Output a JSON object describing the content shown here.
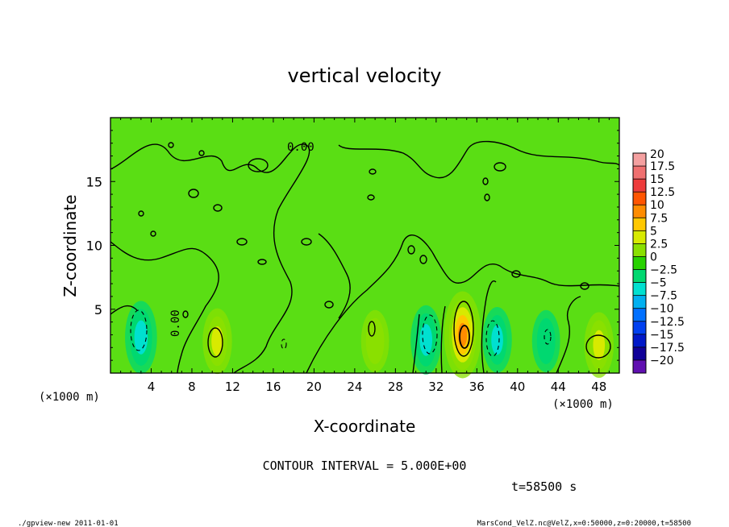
{
  "chart_data": {
    "type": "heatmap",
    "title": "vertical velocity",
    "xlabel": "X-coordinate",
    "ylabel": "Z-coordinate",
    "x_unit": "(×1000 m)",
    "y_unit": "(×1000 m)",
    "xlim": [
      0,
      50
    ],
    "ylim": [
      0,
      20
    ],
    "x_ticks": [
      "4",
      "8",
      "12",
      "16",
      "20",
      "24",
      "28",
      "32",
      "36",
      "40",
      "44",
      "48"
    ],
    "x_tick_values": [
      4,
      8,
      12,
      16,
      20,
      24,
      28,
      32,
      36,
      40,
      44,
      48
    ],
    "y_ticks": [
      "5",
      "10",
      "15"
    ],
    "y_tick_values": [
      5,
      10,
      15
    ],
    "colorbar": {
      "labels": [
        "20",
        "17.5",
        "15",
        "12.5",
        "10",
        "7.5",
        "5",
        "2.5",
        "0",
        "−2.5",
        "−5",
        "−7.5",
        "−10",
        "−12.5",
        "−15",
        "−17.5",
        "−20"
      ],
      "colors": [
        "#f4a0a0",
        "#f07070",
        "#ee3c3c",
        "#ff5500",
        "#ff8c00",
        "#ffc800",
        "#d8ea00",
        "#8ae000",
        "#28d200",
        "#00d870",
        "#00e0d0",
        "#00b0f0",
        "#0070ff",
        "#0040f0",
        "#0018c8",
        "#100098",
        "#6010b0"
      ]
    },
    "contour_labels": [
      "0.00",
      "0.00"
    ],
    "contour_interval_text": "CONTOUR INTERVAL = 5.000E+00",
    "time_text": "t=58500 s",
    "features": [
      {
        "x": 3,
        "z": 2.8,
        "w": -6
      },
      {
        "x": 10.5,
        "z": 2.5,
        "w": 4
      },
      {
        "x": 26,
        "z": 2.5,
        "w": 3
      },
      {
        "x": 31,
        "z": 2.6,
        "w": -5
      },
      {
        "x": 34.6,
        "z": 3.0,
        "w": 10
      },
      {
        "x": 38,
        "z": 2.6,
        "w": -4
      },
      {
        "x": 42.8,
        "z": 2.5,
        "w": -3
      },
      {
        "x": 48,
        "z": 2.2,
        "w": 4
      }
    ]
  },
  "footer": {
    "left": "./gpview-new  2011-01-01",
    "right": "MarsCond_VelZ.nc@VelZ,x=0:50000,z=0:20000,t=58500"
  }
}
